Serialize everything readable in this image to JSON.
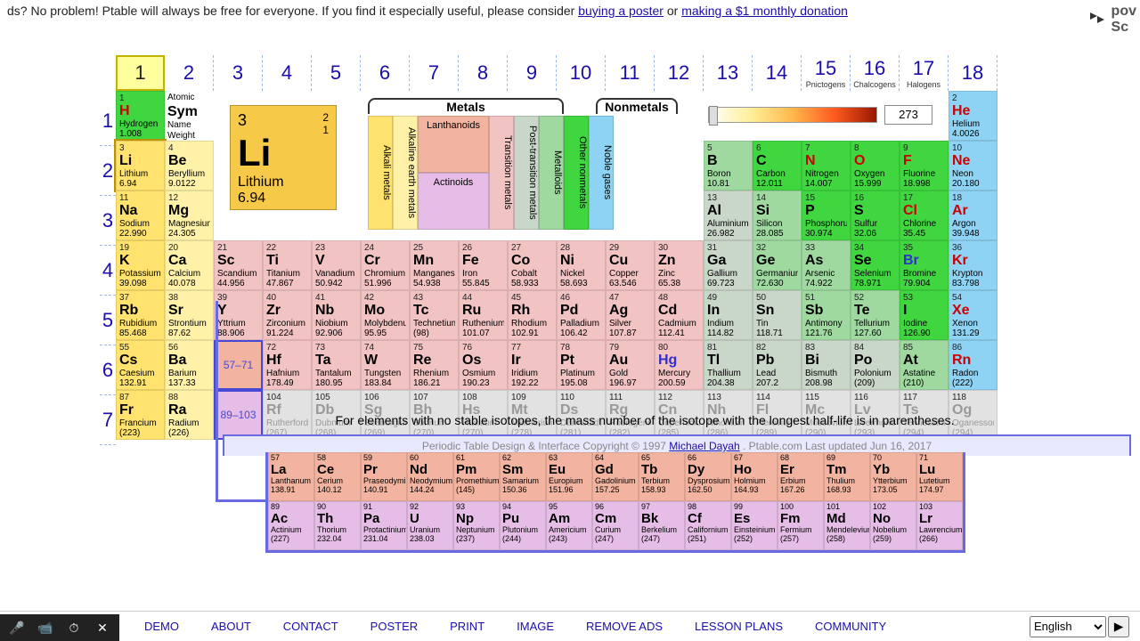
{
  "banner": {
    "pre": "ds? No problem! Ptable will always be free for everyone. If you find it especially useful, please consider ",
    "link1": "buying a poster",
    "mid": " or ",
    "link2": "making a $1 monthly donation",
    "corner": "pov\nSc"
  },
  "groups": [
    "1",
    "2",
    "3",
    "4",
    "5",
    "6",
    "7",
    "8",
    "9",
    "10",
    "11",
    "12",
    "13",
    "14",
    "15",
    "16",
    "17",
    "18"
  ],
  "groupSubs": {
    "15": "Pnictogens",
    "16": "Chalcogens",
    "17": "Halogens"
  },
  "periods": [
    "1",
    "2",
    "3",
    "4",
    "5",
    "6",
    "7"
  ],
  "legendKey": {
    "num": "Atomic",
    "sym": "Sym",
    "name": "Name",
    "wt": "Weight"
  },
  "bigCell": {
    "num": "3",
    "corner1": "2",
    "corner2": "1",
    "sym": "Li",
    "name": "Lithium",
    "wt": "6.94"
  },
  "categories": {
    "metalsHdr": "Metals",
    "nonmetalsHdr": "Nonmetals",
    "cols": [
      {
        "label": "Alkali metals",
        "cls": "alkali"
      },
      {
        "label": "Alkaline earth metals",
        "cls": "alkearth"
      },
      {
        "label": "Lanthanoids",
        "cls": "lanth",
        "wide": true
      },
      {
        "label": "Actinoids",
        "cls": "act",
        "wide": true
      },
      {
        "label": "Transition metals",
        "cls": "trans"
      },
      {
        "label": "Post-transition metals",
        "cls": "post"
      },
      {
        "label": "Metalloids",
        "cls": "metalloid"
      },
      {
        "label": "Other nonmetals",
        "cls": "othernon"
      },
      {
        "label": "Noble gases",
        "cls": "noble"
      }
    ]
  },
  "temp": "273",
  "lanLink": "57–71",
  "actLink": "89–103",
  "isoNote": "For elements with no stable isotopes, the mass number of the isotope with the longest half-life is in parentheses.",
  "copyright": {
    "pre": "Periodic Table Design & Interface Copyright © 1997 ",
    "link": "Michael Dayah",
    "post": ". Ptable.com Last updated Jun 16, 2017"
  },
  "footer": {
    "links": [
      "DEMO",
      "ABOUT",
      "CONTACT",
      "POSTER",
      "PRINT",
      "IMAGE",
      "REMOVE ADS",
      "LESSON PLANS",
      "COMMUNITY"
    ],
    "lang": "English"
  },
  "elements": [
    [
      {
        "n": "1",
        "s": "H",
        "nm": "Hydrogen",
        "w": "1.008",
        "c": "othernon gas"
      },
      null,
      null,
      null,
      null,
      null,
      null,
      null,
      null,
      null,
      null,
      null,
      null,
      null,
      null,
      null,
      null,
      {
        "n": "2",
        "s": "He",
        "nm": "Helium",
        "w": "4.0026",
        "c": "noble gas"
      }
    ],
    [
      {
        "n": "3",
        "s": "Li",
        "nm": "Lithium",
        "w": "6.94",
        "c": "alkali sel"
      },
      {
        "n": "4",
        "s": "Be",
        "nm": "Beryllium",
        "w": "9.0122",
        "c": "alkearth"
      },
      null,
      null,
      null,
      null,
      null,
      null,
      null,
      null,
      null,
      null,
      {
        "n": "5",
        "s": "B",
        "nm": "Boron",
        "w": "10.81",
        "c": "metalloid"
      },
      {
        "n": "6",
        "s": "C",
        "nm": "Carbon",
        "w": "12.011",
        "c": "othernon"
      },
      {
        "n": "7",
        "s": "N",
        "nm": "Nitrogen",
        "w": "14.007",
        "c": "othernon gas"
      },
      {
        "n": "8",
        "s": "O",
        "nm": "Oxygen",
        "w": "15.999",
        "c": "othernon gas"
      },
      {
        "n": "9",
        "s": "F",
        "nm": "Fluorine",
        "w": "18.998",
        "c": "othernon gas"
      },
      {
        "n": "10",
        "s": "Ne",
        "nm": "Neon",
        "w": "20.180",
        "c": "noble gas"
      }
    ],
    [
      {
        "n": "11",
        "s": "Na",
        "nm": "Sodium",
        "w": "22.990",
        "c": "alkali"
      },
      {
        "n": "12",
        "s": "Mg",
        "nm": "Magnesium",
        "w": "24.305",
        "c": "alkearth"
      },
      null,
      null,
      null,
      null,
      null,
      null,
      null,
      null,
      null,
      null,
      {
        "n": "13",
        "s": "Al",
        "nm": "Aluminium",
        "w": "26.982",
        "c": "post"
      },
      {
        "n": "14",
        "s": "Si",
        "nm": "Silicon",
        "w": "28.085",
        "c": "metalloid"
      },
      {
        "n": "15",
        "s": "P",
        "nm": "Phosphorus",
        "w": "30.974",
        "c": "othernon"
      },
      {
        "n": "16",
        "s": "S",
        "nm": "Sulfur",
        "w": "32.06",
        "c": "othernon"
      },
      {
        "n": "17",
        "s": "Cl",
        "nm": "Chlorine",
        "w": "35.45",
        "c": "othernon gas"
      },
      {
        "n": "18",
        "s": "Ar",
        "nm": "Argon",
        "w": "39.948",
        "c": "noble gas"
      }
    ],
    [
      {
        "n": "19",
        "s": "K",
        "nm": "Potassium",
        "w": "39.098",
        "c": "alkali"
      },
      {
        "n": "20",
        "s": "Ca",
        "nm": "Calcium",
        "w": "40.078",
        "c": "alkearth"
      },
      {
        "n": "21",
        "s": "Sc",
        "nm": "Scandium",
        "w": "44.956",
        "c": "trans"
      },
      {
        "n": "22",
        "s": "Ti",
        "nm": "Titanium",
        "w": "47.867",
        "c": "trans"
      },
      {
        "n": "23",
        "s": "V",
        "nm": "Vanadium",
        "w": "50.942",
        "c": "trans"
      },
      {
        "n": "24",
        "s": "Cr",
        "nm": "Chromium",
        "w": "51.996",
        "c": "trans"
      },
      {
        "n": "25",
        "s": "Mn",
        "nm": "Manganese",
        "w": "54.938",
        "c": "trans"
      },
      {
        "n": "26",
        "s": "Fe",
        "nm": "Iron",
        "w": "55.845",
        "c": "trans"
      },
      {
        "n": "27",
        "s": "Co",
        "nm": "Cobalt",
        "w": "58.933",
        "c": "trans"
      },
      {
        "n": "28",
        "s": "Ni",
        "nm": "Nickel",
        "w": "58.693",
        "c": "trans"
      },
      {
        "n": "29",
        "s": "Cu",
        "nm": "Copper",
        "w": "63.546",
        "c": "trans"
      },
      {
        "n": "30",
        "s": "Zn",
        "nm": "Zinc",
        "w": "65.38",
        "c": "trans"
      },
      {
        "n": "31",
        "s": "Ga",
        "nm": "Gallium",
        "w": "69.723",
        "c": "post"
      },
      {
        "n": "32",
        "s": "Ge",
        "nm": "Germanium",
        "w": "72.630",
        "c": "metalloid"
      },
      {
        "n": "33",
        "s": "As",
        "nm": "Arsenic",
        "w": "74.922",
        "c": "metalloid"
      },
      {
        "n": "34",
        "s": "Se",
        "nm": "Selenium",
        "w": "78.971",
        "c": "othernon"
      },
      {
        "n": "35",
        "s": "Br",
        "nm": "Bromine",
        "w": "79.904",
        "c": "othernon liquid"
      },
      {
        "n": "36",
        "s": "Kr",
        "nm": "Krypton",
        "w": "83.798",
        "c": "noble gas"
      }
    ],
    [
      {
        "n": "37",
        "s": "Rb",
        "nm": "Rubidium",
        "w": "85.468",
        "c": "alkali"
      },
      {
        "n": "38",
        "s": "Sr",
        "nm": "Strontium",
        "w": "87.62",
        "c": "alkearth"
      },
      {
        "n": "39",
        "s": "Y",
        "nm": "Yttrium",
        "w": "88.906",
        "c": "trans"
      },
      {
        "n": "40",
        "s": "Zr",
        "nm": "Zirconium",
        "w": "91.224",
        "c": "trans"
      },
      {
        "n": "41",
        "s": "Nb",
        "nm": "Niobium",
        "w": "92.906",
        "c": "trans"
      },
      {
        "n": "42",
        "s": "Mo",
        "nm": "Molybdenum",
        "w": "95.95",
        "c": "trans"
      },
      {
        "n": "43",
        "s": "Tc",
        "nm": "Technetium",
        "w": "(98)",
        "c": "trans"
      },
      {
        "n": "44",
        "s": "Ru",
        "nm": "Ruthenium",
        "w": "101.07",
        "c": "trans"
      },
      {
        "n": "45",
        "s": "Rh",
        "nm": "Rhodium",
        "w": "102.91",
        "c": "trans"
      },
      {
        "n": "46",
        "s": "Pd",
        "nm": "Palladium",
        "w": "106.42",
        "c": "trans"
      },
      {
        "n": "47",
        "s": "Ag",
        "nm": "Silver",
        "w": "107.87",
        "c": "trans"
      },
      {
        "n": "48",
        "s": "Cd",
        "nm": "Cadmium",
        "w": "112.41",
        "c": "trans"
      },
      {
        "n": "49",
        "s": "In",
        "nm": "Indium",
        "w": "114.82",
        "c": "post"
      },
      {
        "n": "50",
        "s": "Sn",
        "nm": "Tin",
        "w": "118.71",
        "c": "post"
      },
      {
        "n": "51",
        "s": "Sb",
        "nm": "Antimony",
        "w": "121.76",
        "c": "metalloid"
      },
      {
        "n": "52",
        "s": "Te",
        "nm": "Tellurium",
        "w": "127.60",
        "c": "metalloid"
      },
      {
        "n": "53",
        "s": "I",
        "nm": "Iodine",
        "w": "126.90",
        "c": "othernon"
      },
      {
        "n": "54",
        "s": "Xe",
        "nm": "Xenon",
        "w": "131.29",
        "c": "noble gas"
      }
    ],
    [
      {
        "n": "55",
        "s": "Cs",
        "nm": "Caesium",
        "w": "132.91",
        "c": "alkali"
      },
      {
        "n": "56",
        "s": "Ba",
        "nm": "Barium",
        "w": "137.33",
        "c": "alkearth"
      },
      {
        "lan": true
      },
      {
        "n": "72",
        "s": "Hf",
        "nm": "Hafnium",
        "w": "178.49",
        "c": "trans"
      },
      {
        "n": "73",
        "s": "Ta",
        "nm": "Tantalum",
        "w": "180.95",
        "c": "trans"
      },
      {
        "n": "74",
        "s": "W",
        "nm": "Tungsten",
        "w": "183.84",
        "c": "trans"
      },
      {
        "n": "75",
        "s": "Re",
        "nm": "Rhenium",
        "w": "186.21",
        "c": "trans"
      },
      {
        "n": "76",
        "s": "Os",
        "nm": "Osmium",
        "w": "190.23",
        "c": "trans"
      },
      {
        "n": "77",
        "s": "Ir",
        "nm": "Iridium",
        "w": "192.22",
        "c": "trans"
      },
      {
        "n": "78",
        "s": "Pt",
        "nm": "Platinum",
        "w": "195.08",
        "c": "trans"
      },
      {
        "n": "79",
        "s": "Au",
        "nm": "Gold",
        "w": "196.97",
        "c": "trans"
      },
      {
        "n": "80",
        "s": "Hg",
        "nm": "Mercury",
        "w": "200.59",
        "c": "trans liquid"
      },
      {
        "n": "81",
        "s": "Tl",
        "nm": "Thallium",
        "w": "204.38",
        "c": "post"
      },
      {
        "n": "82",
        "s": "Pb",
        "nm": "Lead",
        "w": "207.2",
        "c": "post"
      },
      {
        "n": "83",
        "s": "Bi",
        "nm": "Bismuth",
        "w": "208.98",
        "c": "post"
      },
      {
        "n": "84",
        "s": "Po",
        "nm": "Polonium",
        "w": "(209)",
        "c": "post"
      },
      {
        "n": "85",
        "s": "At",
        "nm": "Astatine",
        "w": "(210)",
        "c": "metalloid"
      },
      {
        "n": "86",
        "s": "Rn",
        "nm": "Radon",
        "w": "(222)",
        "c": "noble gas"
      }
    ],
    [
      {
        "n": "87",
        "s": "Fr",
        "nm": "Francium",
        "w": "(223)",
        "c": "alkali"
      },
      {
        "n": "88",
        "s": "Ra",
        "nm": "Radium",
        "w": "(226)",
        "c": "alkearth"
      },
      {
        "act": true
      },
      {
        "n": "104",
        "s": "Rf",
        "nm": "Rutherfordium",
        "w": "(267)",
        "c": "unknown"
      },
      {
        "n": "105",
        "s": "Db",
        "nm": "Dubnium",
        "w": "(268)",
        "c": "unknown"
      },
      {
        "n": "106",
        "s": "Sg",
        "nm": "Seaborgium",
        "w": "(269)",
        "c": "unknown"
      },
      {
        "n": "107",
        "s": "Bh",
        "nm": "Bohrium",
        "w": "(270)",
        "c": "unknown"
      },
      {
        "n": "108",
        "s": "Hs",
        "nm": "Hassium",
        "w": "(270)",
        "c": "unknown"
      },
      {
        "n": "109",
        "s": "Mt",
        "nm": "Meitnerium",
        "w": "(278)",
        "c": "unknown"
      },
      {
        "n": "110",
        "s": "Ds",
        "nm": "Darmstadtium",
        "w": "(281)",
        "c": "unknown"
      },
      {
        "n": "111",
        "s": "Rg",
        "nm": "Roentgenium",
        "w": "(282)",
        "c": "unknown"
      },
      {
        "n": "112",
        "s": "Cn",
        "nm": "Copernicium",
        "w": "(285)",
        "c": "unknown"
      },
      {
        "n": "113",
        "s": "Nh",
        "nm": "Nihonium",
        "w": "(286)",
        "c": "unknown"
      },
      {
        "n": "114",
        "s": "Fl",
        "nm": "Flerovium",
        "w": "(289)",
        "c": "unknown"
      },
      {
        "n": "115",
        "s": "Mc",
        "nm": "Moscovium",
        "w": "(290)",
        "c": "unknown"
      },
      {
        "n": "116",
        "s": "Lv",
        "nm": "Livermorium",
        "w": "(293)",
        "c": "unknown"
      },
      {
        "n": "117",
        "s": "Ts",
        "nm": "Tennessine",
        "w": "(294)",
        "c": "unknown"
      },
      {
        "n": "118",
        "s": "Og",
        "nm": "Oganesson",
        "w": "(294)",
        "c": "unknown"
      }
    ]
  ],
  "fblock": [
    [
      {
        "n": "57",
        "s": "La",
        "nm": "Lanthanum",
        "w": "138.91",
        "c": "lanth"
      },
      {
        "n": "58",
        "s": "Ce",
        "nm": "Cerium",
        "w": "140.12",
        "c": "lanth"
      },
      {
        "n": "59",
        "s": "Pr",
        "nm": "Praseodymium",
        "w": "140.91",
        "c": "lanth"
      },
      {
        "n": "60",
        "s": "Nd",
        "nm": "Neodymium",
        "w": "144.24",
        "c": "lanth"
      },
      {
        "n": "61",
        "s": "Pm",
        "nm": "Promethium",
        "w": "(145)",
        "c": "lanth"
      },
      {
        "n": "62",
        "s": "Sm",
        "nm": "Samarium",
        "w": "150.36",
        "c": "lanth"
      },
      {
        "n": "63",
        "s": "Eu",
        "nm": "Europium",
        "w": "151.96",
        "c": "lanth"
      },
      {
        "n": "64",
        "s": "Gd",
        "nm": "Gadolinium",
        "w": "157.25",
        "c": "lanth"
      },
      {
        "n": "65",
        "s": "Tb",
        "nm": "Terbium",
        "w": "158.93",
        "c": "lanth"
      },
      {
        "n": "66",
        "s": "Dy",
        "nm": "Dysprosium",
        "w": "162.50",
        "c": "lanth"
      },
      {
        "n": "67",
        "s": "Ho",
        "nm": "Holmium",
        "w": "164.93",
        "c": "lanth"
      },
      {
        "n": "68",
        "s": "Er",
        "nm": "Erbium",
        "w": "167.26",
        "c": "lanth"
      },
      {
        "n": "69",
        "s": "Tm",
        "nm": "Thulium",
        "w": "168.93",
        "c": "lanth"
      },
      {
        "n": "70",
        "s": "Yb",
        "nm": "Ytterbium",
        "w": "173.05",
        "c": "lanth"
      },
      {
        "n": "71",
        "s": "Lu",
        "nm": "Lutetium",
        "w": "174.97",
        "c": "lanth"
      }
    ],
    [
      {
        "n": "89",
        "s": "Ac",
        "nm": "Actinium",
        "w": "(227)",
        "c": "act"
      },
      {
        "n": "90",
        "s": "Th",
        "nm": "Thorium",
        "w": "232.04",
        "c": "act"
      },
      {
        "n": "91",
        "s": "Pa",
        "nm": "Protactinium",
        "w": "231.04",
        "c": "act"
      },
      {
        "n": "92",
        "s": "U",
        "nm": "Uranium",
        "w": "238.03",
        "c": "act"
      },
      {
        "n": "93",
        "s": "Np",
        "nm": "Neptunium",
        "w": "(237)",
        "c": "act"
      },
      {
        "n": "94",
        "s": "Pu",
        "nm": "Plutonium",
        "w": "(244)",
        "c": "act"
      },
      {
        "n": "95",
        "s": "Am",
        "nm": "Americium",
        "w": "(243)",
        "c": "act"
      },
      {
        "n": "96",
        "s": "Cm",
        "nm": "Curium",
        "w": "(247)",
        "c": "act"
      },
      {
        "n": "97",
        "s": "Bk",
        "nm": "Berkelium",
        "w": "(247)",
        "c": "act"
      },
      {
        "n": "98",
        "s": "Cf",
        "nm": "Californium",
        "w": "(251)",
        "c": "act"
      },
      {
        "n": "99",
        "s": "Es",
        "nm": "Einsteinium",
        "w": "(252)",
        "c": "act"
      },
      {
        "n": "100",
        "s": "Fm",
        "nm": "Fermium",
        "w": "(257)",
        "c": "act"
      },
      {
        "n": "101",
        "s": "Md",
        "nm": "Mendelevium",
        "w": "(258)",
        "c": "act"
      },
      {
        "n": "102",
        "s": "No",
        "nm": "Nobelium",
        "w": "(259)",
        "c": "act"
      },
      {
        "n": "103",
        "s": "Lr",
        "nm": "Lawrencium",
        "w": "(266)",
        "c": "act"
      }
    ]
  ]
}
